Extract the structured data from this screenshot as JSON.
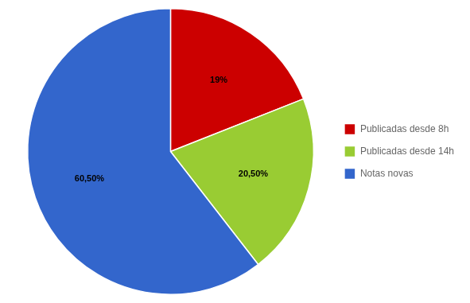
{
  "chart_data": {
    "type": "pie",
    "categories": [
      "Publicadas desde 8h",
      "Publicadas desde 14h",
      "Notas novas"
    ],
    "values": [
      19.0,
      20.5,
      60.5
    ],
    "value_labels": [
      "19%",
      "20,50%",
      "60,50%"
    ],
    "colors": [
      "#cc0000",
      "#99cc33",
      "#3366cc"
    ],
    "data_labels": true,
    "legend": "right"
  }
}
